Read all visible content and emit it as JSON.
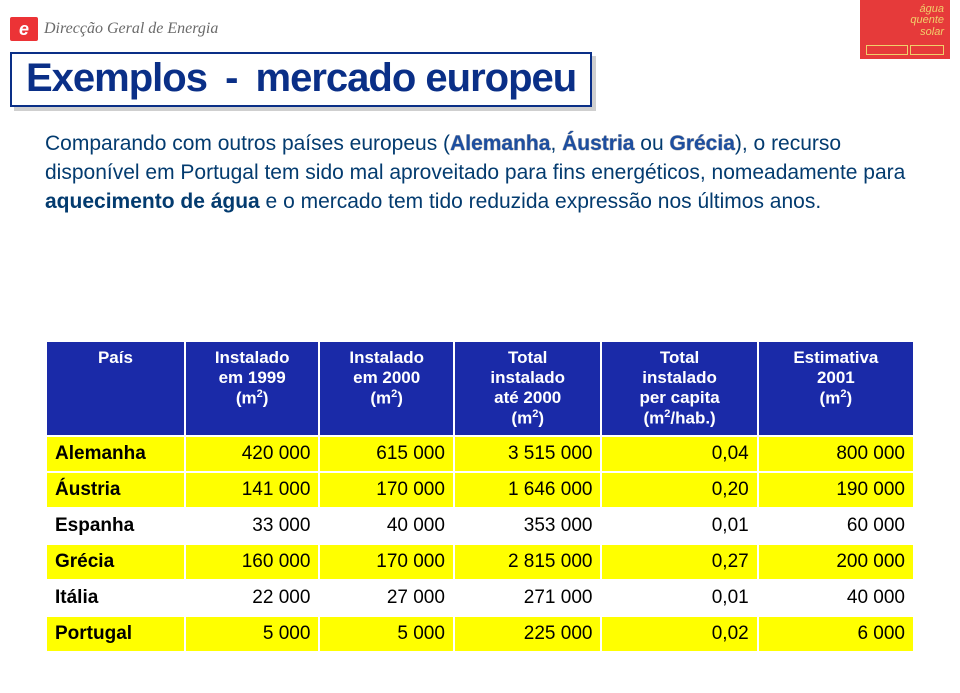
{
  "header": {
    "logo_letter": "e",
    "logo_text": "Direcção Geral de Energia",
    "badge_line1": "água",
    "badge_line2": "quente",
    "badge_line3": "solar"
  },
  "title": {
    "word1": "Exemplos",
    "dash": "-",
    "word2": "mercado europeu"
  },
  "paragraph": {
    "p1a": "Comparando com outros países europeus (",
    "hl1": "Alemanha",
    "p1b": ", ",
    "hl2": "Áustria",
    "p1c": " ou ",
    "hl3": "Grécia",
    "p1d": "), o recurso disponível em Portugal tem sido mal aproveitado para fins energéticos, nomeadamente para ",
    "bold1": "aquecimento de água",
    "p1e": " e o mercado tem tido reduzida expressão nos últimos anos."
  },
  "table": {
    "columns": [
      "País",
      "Instalado em 1999 (m²)",
      "Instalado em 2000 (m²)",
      "Total instalado até 2000 (m²)",
      "Total instalado per capita (m²/hab.)",
      "Estimativa 2001 (m²)"
    ],
    "col_html": {
      "c0": "País",
      "c1_l1": "Instalado",
      "c1_l2": "em 1999",
      "c1_l3": "(m",
      "c2_l1": "Instalado",
      "c2_l2": "em 2000",
      "c2_l3": "(m",
      "c3_l1": "Total",
      "c3_l2": "instalado",
      "c3_l3": "até 2000",
      "c3_l4": "(m",
      "c4_l1": "Total",
      "c4_l2": "instalado",
      "c4_l3": "per capita",
      "c4_l4": "(m",
      "c4_l5": "/hab.)",
      "c5_l1": "Estimativa",
      "c5_l2": "2001",
      "c5_l3": "(m",
      "sup2": "2",
      "close_paren": ")"
    },
    "rows": [
      {
        "country": "Alemanha",
        "v": [
          "420 000",
          "615 000",
          "3 515 000",
          "0,04",
          "800 000"
        ],
        "stripe": "yellow"
      },
      {
        "country": "Áustria",
        "v": [
          "141 000",
          "170 000",
          "1 646 000",
          "0,20",
          "190 000"
        ],
        "stripe": "yellow"
      },
      {
        "country": "Espanha",
        "v": [
          "33 000",
          "40 000",
          "353 000",
          "0,01",
          "60 000"
        ],
        "stripe": "white"
      },
      {
        "country": "Grécia",
        "v": [
          "160 000",
          "170 000",
          "2 815 000",
          "0,27",
          "200 000"
        ],
        "stripe": "yellow"
      },
      {
        "country": "Itália",
        "v": [
          "22 000",
          "27 000",
          "271 000",
          "0,01",
          "40 000"
        ],
        "stripe": "white"
      },
      {
        "country": "Portugal",
        "v": [
          "5 000",
          "5 000",
          "225 000",
          "0,02",
          "6 000"
        ],
        "stripe": "yellow"
      }
    ],
    "colors": {
      "header_bg": "#1a2aa8",
      "header_fg": "#ffffff",
      "row_yellow": "#ffff00",
      "row_white": "#ffffff",
      "border": "#ffffff"
    }
  }
}
